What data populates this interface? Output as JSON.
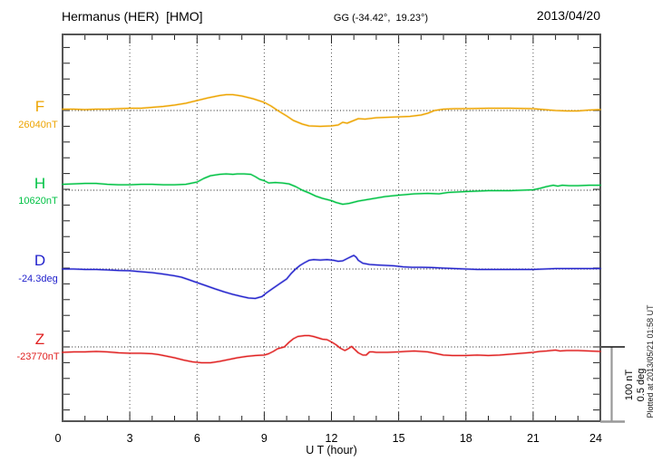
{
  "header": {
    "title": "Hermanus (HER)  [HMO]",
    "coordinates": "GG (-34.42°,  19.23°)",
    "date": "2013/04/20"
  },
  "x_axis": {
    "label": "U T (hour)",
    "ticks": [
      0,
      3,
      6,
      9,
      12,
      15,
      18,
      21,
      24
    ],
    "minor_tick_every_hours": 1,
    "range": [
      0,
      24
    ]
  },
  "traces": [
    {
      "id": "F",
      "label": "F",
      "baseline_label": "26040nT",
      "color": "#EDA400"
    },
    {
      "id": "H",
      "label": "H",
      "baseline_label": "10620nT",
      "color": "#00C244"
    },
    {
      "id": "D",
      "label": "D",
      "baseline_label": "-24.3deg",
      "color": "#2222CC"
    },
    {
      "id": "Z",
      "label": "Z",
      "baseline_label": "-23770nT",
      "color": "#E02020"
    }
  ],
  "scale_bar": {
    "labels": [
      "100 nT",
      "0.5 deg"
    ],
    "nT_per_bar": 100,
    "deg_per_bar": 0.5
  },
  "footer_note": "Plotted at 2013/05/21 01:58 UT",
  "chart_data": {
    "type": "line",
    "title": "Hermanus (HER) [HMO] magnetogram, 2013/04/20",
    "xlabel": "U T (hour)",
    "xlim": [
      0,
      24
    ],
    "x_unit": "hour UT",
    "grid": "dotted vertical lines every 3 h; dotted horizontal baseline per trace",
    "legend_position": "left margin (trace letter + baseline value)",
    "y_scale": {
      "bar_equals_nT": 100,
      "bar_equals_deg": 0.5,
      "minor_division_nT_estimated": 20
    },
    "series": [
      {
        "name": "F",
        "baseline": 26040,
        "unit": "nT",
        "color": "#EDA400",
        "values_are": "offset from baseline",
        "points": [
          [
            0,
            1.7
          ],
          [
            0.5,
            1.7
          ],
          [
            1,
            1.1
          ],
          [
            1.5,
            1.7
          ],
          [
            2,
            1.7
          ],
          [
            2.5,
            2.3
          ],
          [
            3,
            2.9
          ],
          [
            3.5,
            2.9
          ],
          [
            4,
            4.0
          ],
          [
            4.5,
            5.2
          ],
          [
            5,
            6.9
          ],
          [
            5.5,
            9.2
          ],
          [
            6,
            12.6
          ],
          [
            6.5,
            16.1
          ],
          [
            7,
            19.0
          ],
          [
            7.3,
            20.1
          ],
          [
            7.6,
            20.1
          ],
          [
            8,
            18.4
          ],
          [
            8.5,
            14.9
          ],
          [
            9,
            10.3
          ],
          [
            9.3,
            5.7
          ],
          [
            9.6,
            0.0
          ],
          [
            10,
            -6.9
          ],
          [
            10.3,
            -12.6
          ],
          [
            10.7,
            -17.2
          ],
          [
            11,
            -19.5
          ],
          [
            11.5,
            -20.1
          ],
          [
            12,
            -19.5
          ],
          [
            12.3,
            -18.4
          ],
          [
            12.5,
            -14.9
          ],
          [
            12.7,
            -16.1
          ],
          [
            13,
            -12.6
          ],
          [
            13.2,
            -10.3
          ],
          [
            13.5,
            -10.9
          ],
          [
            14,
            -9.2
          ],
          [
            14.5,
            -8.6
          ],
          [
            15,
            -8.0
          ],
          [
            15.5,
            -7.5
          ],
          [
            16,
            -5.7
          ],
          [
            16.3,
            -3.4
          ],
          [
            16.6,
            0.0
          ],
          [
            17,
            1.7
          ],
          [
            17.5,
            2.3
          ],
          [
            18,
            2.3
          ],
          [
            19,
            2.9
          ],
          [
            20,
            2.9
          ],
          [
            21,
            2.3
          ],
          [
            21.5,
            1.1
          ],
          [
            22,
            0.0
          ],
          [
            22.5,
            -0.6
          ],
          [
            23,
            -0.6
          ],
          [
            23.5,
            0.6
          ],
          [
            24,
            1.1
          ]
        ]
      },
      {
        "name": "H",
        "baseline": 10620,
        "unit": "nT",
        "color": "#00C244",
        "values_are": "offset from baseline",
        "points": [
          [
            0,
            7.5
          ],
          [
            0.5,
            8.0
          ],
          [
            1,
            8.6
          ],
          [
            1.5,
            8.6
          ],
          [
            2,
            7.5
          ],
          [
            2.5,
            6.9
          ],
          [
            3,
            6.9
          ],
          [
            3.5,
            7.5
          ],
          [
            4,
            7.5
          ],
          [
            4.5,
            6.9
          ],
          [
            5,
            6.9
          ],
          [
            5.5,
            7.5
          ],
          [
            6,
            10.3
          ],
          [
            6.3,
            14.9
          ],
          [
            6.6,
            18.4
          ],
          [
            7,
            20.1
          ],
          [
            7.3,
            20.7
          ],
          [
            7.6,
            20.1
          ],
          [
            7.8,
            20.7
          ],
          [
            8.1,
            20.7
          ],
          [
            8.4,
            20.1
          ],
          [
            8.6,
            17.2
          ],
          [
            8.8,
            13.8
          ],
          [
            9,
            12.1
          ],
          [
            9.2,
            9.2
          ],
          [
            9.5,
            9.8
          ],
          [
            9.8,
            9.2
          ],
          [
            10.1,
            8.0
          ],
          [
            10.4,
            4.6
          ],
          [
            10.7,
            0.0
          ],
          [
            11,
            -3.4
          ],
          [
            11.3,
            -7.5
          ],
          [
            11.6,
            -10.3
          ],
          [
            12,
            -13.2
          ],
          [
            12.2,
            -15.5
          ],
          [
            12.5,
            -17.8
          ],
          [
            12.8,
            -16.7
          ],
          [
            13.2,
            -13.8
          ],
          [
            13.8,
            -10.9
          ],
          [
            14.4,
            -8.0
          ],
          [
            15,
            -6.3
          ],
          [
            15.7,
            -4.6
          ],
          [
            16.3,
            -4.0
          ],
          [
            16.8,
            -4.6
          ],
          [
            17.2,
            -2.9
          ],
          [
            17.6,
            -2.3
          ],
          [
            18,
            -1.7
          ],
          [
            18.5,
            -1.1
          ],
          [
            19,
            -0.6
          ],
          [
            19.5,
            -0.6
          ],
          [
            20,
            -0.6
          ],
          [
            20.5,
            0.0
          ],
          [
            21,
            0.6
          ],
          [
            21.3,
            2.3
          ],
          [
            21.6,
            4.6
          ],
          [
            21.9,
            6.3
          ],
          [
            22.1,
            5.2
          ],
          [
            22.3,
            6.3
          ],
          [
            22.6,
            5.7
          ],
          [
            23,
            5.7
          ],
          [
            23.5,
            6.3
          ],
          [
            24,
            6.3
          ]
        ]
      },
      {
        "name": "D",
        "baseline": -24.3,
        "unit": "deg",
        "color": "#2222CC",
        "values_are": "offset from baseline",
        "points": [
          [
            0,
            0.0
          ],
          [
            0.5,
            0.0
          ],
          [
            1,
            -0.003
          ],
          [
            1.5,
            -0.003
          ],
          [
            2,
            -0.006
          ],
          [
            2.5,
            -0.009
          ],
          [
            3,
            -0.011
          ],
          [
            3.5,
            -0.017
          ],
          [
            4,
            -0.023
          ],
          [
            4.5,
            -0.032
          ],
          [
            5,
            -0.043
          ],
          [
            5.3,
            -0.052
          ],
          [
            5.6,
            -0.066
          ],
          [
            6,
            -0.086
          ],
          [
            6.4,
            -0.106
          ],
          [
            6.8,
            -0.126
          ],
          [
            7.2,
            -0.144
          ],
          [
            7.6,
            -0.161
          ],
          [
            8,
            -0.175
          ],
          [
            8.3,
            -0.184
          ],
          [
            8.6,
            -0.187
          ],
          [
            8.9,
            -0.175
          ],
          [
            9.1,
            -0.152
          ],
          [
            9.4,
            -0.121
          ],
          [
            9.7,
            -0.092
          ],
          [
            10,
            -0.063
          ],
          [
            10.2,
            -0.029
          ],
          [
            10.4,
            0.0
          ],
          [
            10.6,
            0.023
          ],
          [
            10.8,
            0.04
          ],
          [
            11,
            0.055
          ],
          [
            11.2,
            0.06
          ],
          [
            11.5,
            0.057
          ],
          [
            11.8,
            0.06
          ],
          [
            12.1,
            0.055
          ],
          [
            12.3,
            0.049
          ],
          [
            12.5,
            0.052
          ],
          [
            12.7,
            0.066
          ],
          [
            12.9,
            0.08
          ],
          [
            13,
            0.086
          ],
          [
            13.1,
            0.075
          ],
          [
            13.2,
            0.055
          ],
          [
            13.4,
            0.037
          ],
          [
            13.7,
            0.029
          ],
          [
            14,
            0.026
          ],
          [
            14.4,
            0.023
          ],
          [
            14.8,
            0.02
          ],
          [
            15.2,
            0.014
          ],
          [
            15.6,
            0.011
          ],
          [
            16,
            0.011
          ],
          [
            16.5,
            0.009
          ],
          [
            17,
            0.006
          ],
          [
            17.5,
            0.003
          ],
          [
            18,
            0.0
          ],
          [
            18.5,
            -0.003
          ],
          [
            19,
            -0.003
          ],
          [
            19.5,
            -0.003
          ],
          [
            20,
            -0.003
          ],
          [
            20.5,
            -0.003
          ],
          [
            21,
            -0.003
          ],
          [
            21.5,
            0.0
          ],
          [
            22,
            0.003
          ],
          [
            22.5,
            0.003
          ],
          [
            23,
            0.003
          ],
          [
            23.5,
            0.003
          ],
          [
            24,
            0.003
          ]
        ]
      },
      {
        "name": "Z",
        "baseline": -23770,
        "unit": "nT",
        "color": "#E02020",
        "values_are": "offset from baseline",
        "points": [
          [
            0,
            -6.9
          ],
          [
            0.5,
            -6.3
          ],
          [
            1,
            -6.3
          ],
          [
            1.5,
            -5.7
          ],
          [
            2,
            -6.3
          ],
          [
            2.5,
            -7.5
          ],
          [
            3,
            -8.0
          ],
          [
            3.5,
            -8.0
          ],
          [
            4,
            -8.6
          ],
          [
            4.3,
            -9.8
          ],
          [
            4.6,
            -11.5
          ],
          [
            5,
            -13.8
          ],
          [
            5.4,
            -16.7
          ],
          [
            5.8,
            -19.0
          ],
          [
            6.2,
            -20.1
          ],
          [
            6.6,
            -20.1
          ],
          [
            7,
            -18.4
          ],
          [
            7.4,
            -16.1
          ],
          [
            7.8,
            -13.8
          ],
          [
            8.2,
            -12.1
          ],
          [
            8.6,
            -10.9
          ],
          [
            9,
            -10.3
          ],
          [
            9.2,
            -8.6
          ],
          [
            9.4,
            -5.7
          ],
          [
            9.6,
            -2.3
          ],
          [
            9.9,
            0.0
          ],
          [
            10.1,
            5.7
          ],
          [
            10.3,
            10.3
          ],
          [
            10.5,
            13.2
          ],
          [
            10.8,
            14.4
          ],
          [
            11,
            14.4
          ],
          [
            11.2,
            13.2
          ],
          [
            11.4,
            11.5
          ],
          [
            11.6,
            9.8
          ],
          [
            11.8,
            9.2
          ],
          [
            12,
            6.3
          ],
          [
            12.2,
            2.9
          ],
          [
            12.4,
            -1.7
          ],
          [
            12.6,
            -4.6
          ],
          [
            12.75,
            -2.3
          ],
          [
            12.9,
            0.6
          ],
          [
            13.05,
            -3.4
          ],
          [
            13.2,
            -7.5
          ],
          [
            13.4,
            -10.3
          ],
          [
            13.55,
            -10.3
          ],
          [
            13.7,
            -6.3
          ],
          [
            13.85,
            -6.3
          ],
          [
            14,
            -6.9
          ],
          [
            14.5,
            -6.9
          ],
          [
            15,
            -6.3
          ],
          [
            15.3,
            -5.7
          ],
          [
            15.7,
            -5.2
          ],
          [
            16,
            -5.7
          ],
          [
            16.3,
            -6.3
          ],
          [
            16.6,
            -8.0
          ],
          [
            17,
            -10.3
          ],
          [
            17.4,
            -10.9
          ],
          [
            18,
            -10.9
          ],
          [
            18.5,
            -10.3
          ],
          [
            19,
            -10.9
          ],
          [
            19.5,
            -10.3
          ],
          [
            20,
            -9.2
          ],
          [
            20.5,
            -8.0
          ],
          [
            21,
            -6.9
          ],
          [
            21.3,
            -5.7
          ],
          [
            21.6,
            -5.2
          ],
          [
            22,
            -4.0
          ],
          [
            22.2,
            -5.2
          ],
          [
            22.5,
            -4.6
          ],
          [
            23,
            -4.6
          ],
          [
            23.5,
            -5.2
          ],
          [
            24,
            -5.7
          ]
        ]
      }
    ]
  }
}
